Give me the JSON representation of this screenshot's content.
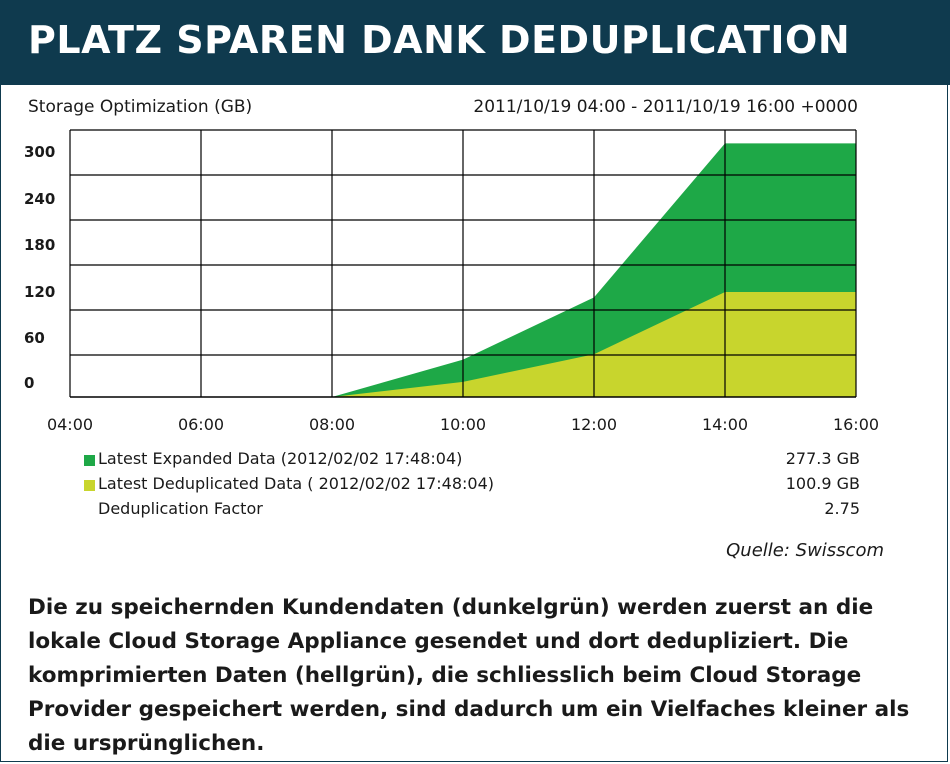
{
  "header": {
    "title": "PLATZ SPAREN DANK DEDUPLICATION"
  },
  "chart_header": {
    "title": "Storage Optimization (GB)",
    "date_range": "2011/10/19 04:00 - 2011/10/19 16:00 +0000"
  },
  "chart_data": {
    "type": "area",
    "stacked": false,
    "x": [
      "04:00",
      "06:00",
      "08:00",
      "10:00",
      "12:00",
      "14:00",
      "16:00"
    ],
    "ylim": [
      0,
      300
    ],
    "yticks": [
      "300",
      "240",
      "180",
      "120",
      "60",
      "0"
    ],
    "ytick_values": [
      300,
      240,
      180,
      120,
      60,
      0
    ],
    "grid": true,
    "series": [
      {
        "name": "Latest Expanded Data (2012/02/02 17:48:04)",
        "color": "#1ea847",
        "values": [
          0,
          0,
          0,
          42,
          112,
          285,
          285
        ]
      },
      {
        "name": "Latest Deduplicated Data ( 2012/02/02 17:48:04)",
        "color": "#c8d52d",
        "values": [
          0,
          0,
          0,
          17,
          48,
          118,
          118
        ]
      }
    ]
  },
  "legend": [
    {
      "label": "Latest Expanded Data (2012/02/02 17:48:04)",
      "value": "277.3 GB",
      "color": "#1ea847"
    },
    {
      "label": "Latest Deduplicated Data ( 2012/02/02 17:48:04)",
      "value": "100.9 GB",
      "color": "#c8d52d"
    },
    {
      "label": "Deduplication Factor",
      "value": "2.75",
      "color": ""
    }
  ],
  "source": "Quelle: Swisscom",
  "caption": "Die zu speichernden Kundendaten (dunkelgrün) werden zuerst an die lokale Cloud Storage Appliance gesendet und dort dedupliziert. Die komprimierten Daten (hellgrün), die schliesslich beim Cloud Storage Provider gespeichert werden, sind dadurch um ein Vielfaches kleiner als die ursprünglichen."
}
